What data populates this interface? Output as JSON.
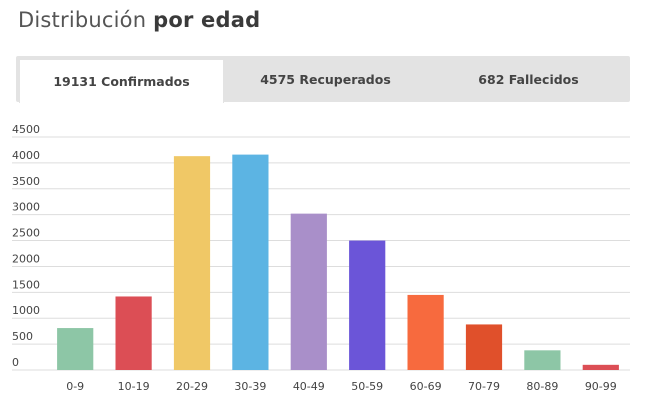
{
  "title_part1": "Distribución ",
  "title_part2": "por edad",
  "tabs": [
    {
      "label": "19131 Confirmados",
      "active": true
    },
    {
      "label": "4575 Recuperados",
      "active": false
    },
    {
      "label": "682 Fallecidos",
      "active": false
    }
  ],
  "chart_data": {
    "type": "bar",
    "title": "",
    "xlabel": "",
    "ylabel": "",
    "ylim": [
      0,
      4500
    ],
    "yticks": [
      0,
      500,
      1000,
      1500,
      2000,
      2500,
      3000,
      3500,
      4000,
      4500
    ],
    "grid": true,
    "categories": [
      "0-9",
      "10-19",
      "20-29",
      "30-39",
      "40-49",
      "50-59",
      "60-69",
      "70-79",
      "80-89",
      "90-99"
    ],
    "values": [
      810,
      1420,
      4130,
      4160,
      3020,
      2500,
      1450,
      880,
      380,
      100
    ],
    "colors": [
      "#8dc6a6",
      "#dc4e55",
      "#f0c866",
      "#5cb4e3",
      "#a98fc9",
      "#6b55d8",
      "#f76a3e",
      "#e0502b",
      "#8dc6a6",
      "#dc4e55"
    ]
  }
}
